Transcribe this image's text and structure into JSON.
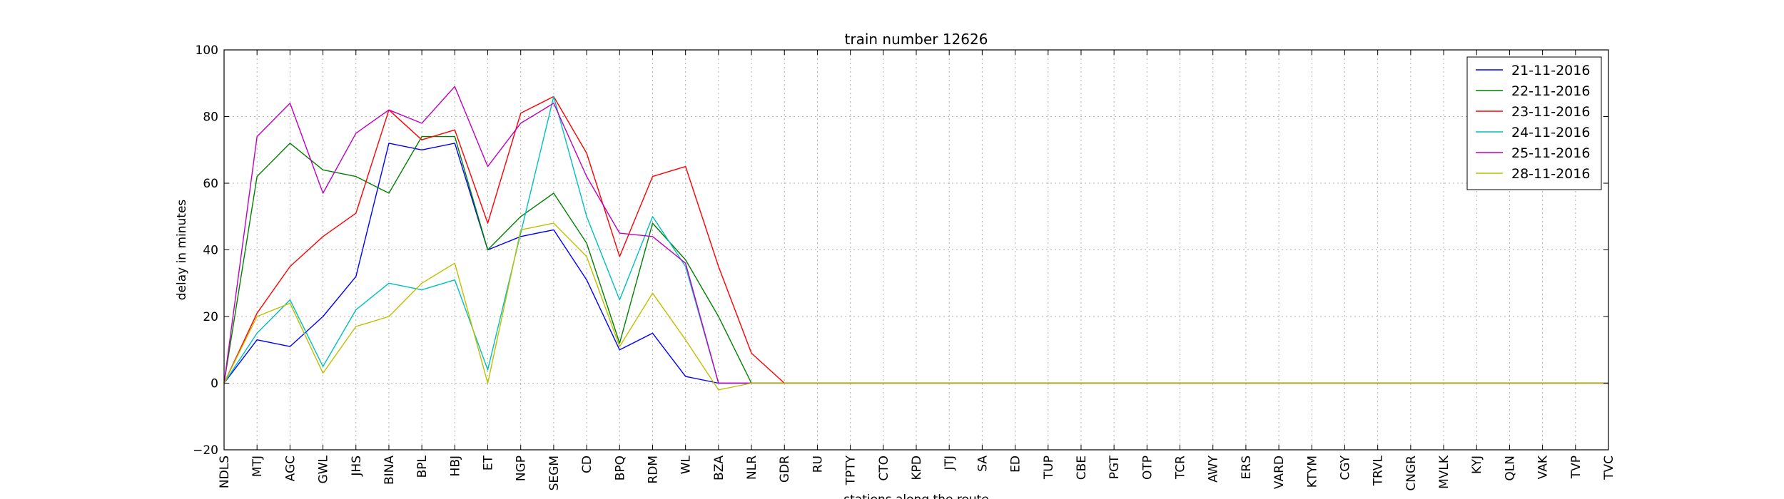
{
  "chart_data": {
    "type": "line",
    "title": "train number 12626",
    "xlabel": "stations along the route",
    "ylabel": "delay in minutes",
    "ylim": [
      -20,
      100
    ],
    "yticks": [
      -20,
      0,
      20,
      40,
      60,
      80,
      100
    ],
    "grid": true,
    "legend_position": "top-right",
    "categories": [
      "NDLS",
      "MTJ",
      "AGC",
      "GWL",
      "JHS",
      "BINA",
      "BPL",
      "HBJ",
      "ET",
      "NGP",
      "SEGM",
      "CD",
      "BPQ",
      "RDM",
      "WL",
      "BZA",
      "NLR",
      "GDR",
      "RU",
      "TPTY",
      "CTO",
      "KPD",
      "JTJ",
      "SA",
      "ED",
      "TUP",
      "CBE",
      "PGT",
      "OTP",
      "TCR",
      "AWY",
      "ERS",
      "VARD",
      "KTYM",
      "CGY",
      "TRVL",
      "CNGR",
      "MVLK",
      "KYJ",
      "QLN",
      "VAK",
      "TVP",
      "TVC"
    ],
    "series": [
      {
        "name": "21-11-2016",
        "color": "#0000ff",
        "values": [
          0,
          13,
          11,
          20,
          32,
          72,
          70,
          72,
          40,
          44,
          46,
          31,
          10,
          15,
          2,
          0,
          0,
          0,
          0,
          0,
          0,
          0,
          0,
          0,
          0,
          0,
          0,
          0,
          0,
          0,
          0,
          0,
          0,
          0,
          0,
          0,
          0,
          0,
          0,
          0,
          0,
          0,
          0
        ]
      },
      {
        "name": "22-11-2016",
        "color": "#008000",
        "values": [
          0,
          62,
          72,
          64,
          62,
          57,
          74,
          74,
          40,
          50,
          57,
          42,
          12,
          48,
          37,
          20,
          0,
          0,
          0,
          0,
          0,
          0,
          0,
          0,
          0,
          0,
          0,
          0,
          0,
          0,
          0,
          0,
          0,
          0,
          0,
          0,
          0,
          0,
          0,
          0,
          0,
          0,
          0
        ]
      },
      {
        "name": "23-11-2016",
        "color": "#ff0000",
        "values": [
          0,
          21,
          35,
          44,
          51,
          82,
          73,
          76,
          48,
          81,
          86,
          69,
          38,
          62,
          65,
          35,
          9,
          0,
          0,
          0,
          0,
          0,
          0,
          0,
          0,
          0,
          0,
          0,
          0,
          0,
          0,
          0,
          0,
          0,
          0,
          0,
          0,
          0,
          0,
          0,
          0,
          0,
          0
        ]
      },
      {
        "name": "24-11-2016",
        "color": "#00bfbf",
        "values": [
          0,
          15,
          25,
          5,
          22,
          30,
          28,
          31,
          4,
          45,
          86,
          50,
          25,
          50,
          35,
          0,
          0,
          0,
          0,
          0,
          0,
          0,
          0,
          0,
          0,
          0,
          0,
          0,
          0,
          0,
          0,
          0,
          0,
          0,
          0,
          0,
          0,
          0,
          0,
          0,
          0,
          0,
          0
        ]
      },
      {
        "name": "25-11-2016",
        "color": "#bf00bf",
        "values": [
          0,
          74,
          84,
          57,
          75,
          82,
          78,
          89,
          65,
          78,
          84,
          62,
          45,
          44,
          36,
          0,
          0,
          0,
          0,
          0,
          0,
          0,
          0,
          0,
          0,
          0,
          0,
          0,
          0,
          0,
          0,
          0,
          0,
          0,
          0,
          0,
          0,
          0,
          0,
          0,
          0,
          0,
          0
        ]
      },
      {
        "name": "28-11-2016",
        "color": "#bfbf00",
        "values": [
          0,
          20,
          24,
          3,
          17,
          20,
          30,
          36,
          0,
          46,
          48,
          38,
          11,
          27,
          13,
          -2,
          0,
          0,
          0,
          0,
          0,
          0,
          0,
          0,
          0,
          0,
          0,
          0,
          0,
          0,
          0,
          0,
          0,
          0,
          0,
          0,
          0,
          0,
          0,
          0,
          0,
          0,
          0
        ]
      }
    ]
  }
}
